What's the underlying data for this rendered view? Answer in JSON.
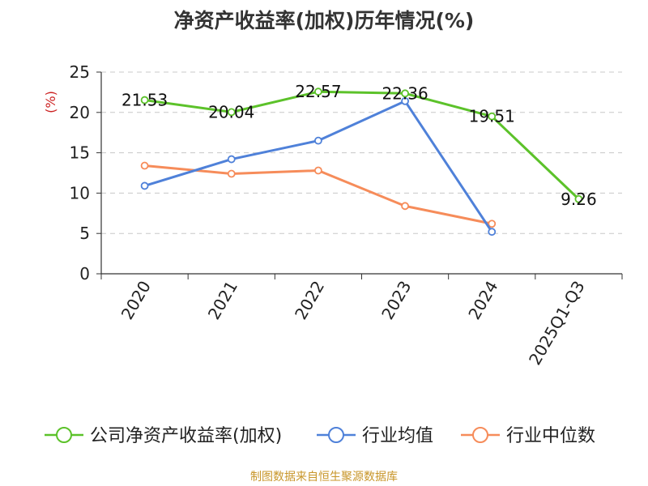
{
  "page": {
    "title": "净资产收益率(加权)历年情况(%)",
    "source": "制图数据来自恒生聚源数据库"
  },
  "chart_data": {
    "type": "line",
    "title": "净资产收益率(加权)历年情况(%)",
    "ylabel": "(%)",
    "xlabel": "",
    "categories": [
      "2020",
      "2021",
      "2022",
      "2023",
      "2024",
      "2025Q1-Q3"
    ],
    "ylim": [
      0,
      25
    ],
    "yticks": [
      0,
      5,
      10,
      15,
      20,
      25
    ],
    "grid": true,
    "legend_position": "bottom",
    "series": [
      {
        "name": "公司净资产收益率(加权)",
        "color": "#5cc22a",
        "values": [
          21.53,
          20.04,
          22.57,
          22.36,
          19.51,
          9.26
        ],
        "labels": [
          "21.53",
          "20.04",
          "22.57",
          "22.36",
          "19.51",
          "9.26"
        ]
      },
      {
        "name": "行业均值",
        "color": "#4f81d9",
        "values": [
          10.9,
          14.2,
          16.5,
          21.4,
          5.2,
          null
        ]
      },
      {
        "name": "行业中位数",
        "color": "#f68c5a",
        "values": [
          13.4,
          12.4,
          12.8,
          8.4,
          6.2,
          null
        ]
      }
    ],
    "ylabel_color": "#cc2222"
  }
}
